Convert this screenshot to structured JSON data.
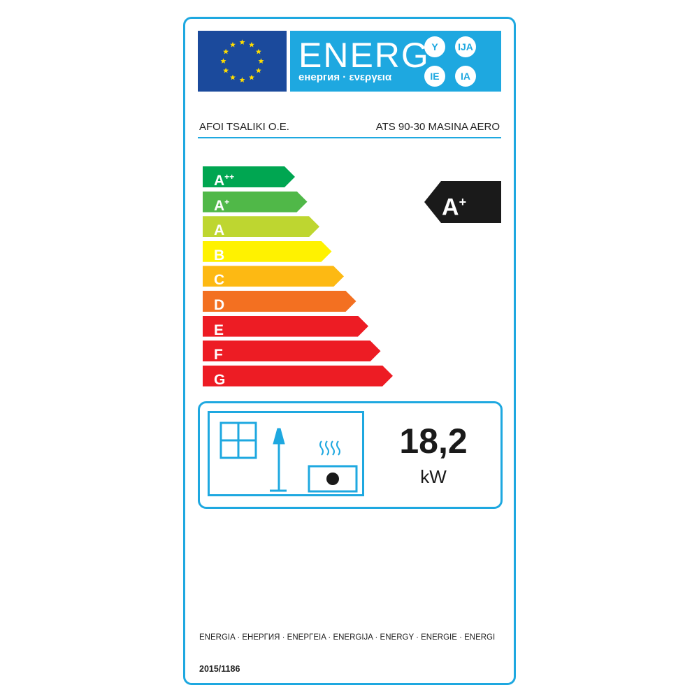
{
  "header": {
    "energ": "ENERG",
    "subtitle": "енергия · ενεργεια",
    "suffixes": [
      "Y",
      "IJA",
      "IE",
      "IA"
    ]
  },
  "supplier": "AFOI TSALIKI O.E.",
  "model": "ATS 90-30 MASINA AERO",
  "scale": [
    {
      "letter": "A",
      "sup": "++",
      "color": "#00a651"
    },
    {
      "letter": "A",
      "sup": "+",
      "color": "#50b848"
    },
    {
      "letter": "A",
      "sup": "",
      "color": "#bed630"
    },
    {
      "letter": "B",
      "sup": "",
      "color": "#fff200"
    },
    {
      "letter": "C",
      "sup": "",
      "color": "#fdb913"
    },
    {
      "letter": "D",
      "sup": "",
      "color": "#f37021"
    },
    {
      "letter": "E",
      "sup": "",
      "color": "#ed1c24"
    },
    {
      "letter": "F",
      "sup": "",
      "color": "#ed1c24"
    },
    {
      "letter": "G",
      "sup": "",
      "color": "#ed1c24"
    }
  ],
  "rating": {
    "letter": "A",
    "sup": "+"
  },
  "output": {
    "value": "18,2",
    "unit": "kW"
  },
  "languages": "ENERGIA · ЕНЕРГИЯ · ΕΝΕΡΓΕΙΑ · ENERGIJA · ENERGY · ENERGIE · ENERGI",
  "regulation": "2015/1186",
  "colors": {
    "accent": "#1ea8e0",
    "eu_blue": "#1b4a9c",
    "star": "#ffdd00"
  }
}
